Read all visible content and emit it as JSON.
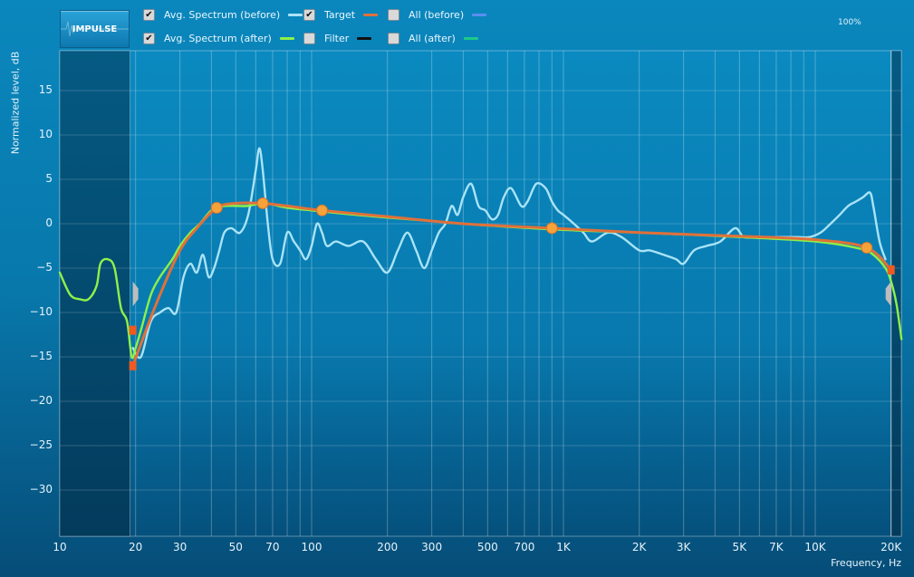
{
  "toolbar": {
    "impulse_label": "IMPULSE",
    "zoom_readout": "100%",
    "legend": [
      {
        "label": "Avg. Spectrum (before)",
        "checked": true,
        "color": "#a9e3f7"
      },
      {
        "label": "Avg. Spectrum (after)",
        "checked": true,
        "color": "#8ef04a"
      },
      {
        "label": "Target",
        "checked": true,
        "color": "#e0703a"
      },
      {
        "label": "Filter",
        "checked": false,
        "color": "#111111"
      },
      {
        "label": "All (before)",
        "checked": false,
        "color": "#5b8ef0"
      },
      {
        "label": "All (after)",
        "checked": false,
        "color": "#1ec98a"
      }
    ]
  },
  "chart_data": {
    "type": "line",
    "xscale": "log",
    "xlabel": "Frequency, Hz",
    "ylabel": "Normalized level, dB",
    "xlim": [
      10,
      22000
    ],
    "ylim": [
      -35,
      20
    ],
    "xticks": [
      10,
      20,
      30,
      50,
      70,
      100,
      200,
      300,
      500,
      700,
      1000,
      2000,
      3000,
      5000,
      7000,
      10000,
      20000
    ],
    "xtick_labels": [
      "10",
      "20",
      "30",
      "50",
      "70",
      "100",
      "200",
      "300",
      "500",
      "700",
      "1K",
      "2K",
      "3K",
      "5K",
      "7K",
      "10K",
      "20K"
    ],
    "yticks": [
      15,
      10,
      5,
      0,
      -5,
      -10,
      -15,
      -20,
      -25,
      -30
    ],
    "ytick_labels": [
      "15",
      "10",
      "5",
      "0",
      "−5",
      "−10",
      "−15",
      "−20",
      "−25",
      "−30"
    ],
    "grid": true,
    "excluded_ranges_hz": [
      [
        10,
        19
      ],
      [
        20000,
        22000
      ]
    ],
    "series": [
      {
        "name": "Avg. Spectrum (before)",
        "color": "#a9e3f7",
        "points": [
          [
            19.5,
            -14
          ],
          [
            21,
            -15
          ],
          [
            23,
            -11
          ],
          [
            25,
            -10
          ],
          [
            27,
            -9.5
          ],
          [
            29,
            -10
          ],
          [
            31,
            -6
          ],
          [
            33,
            -4.5
          ],
          [
            35,
            -5.5
          ],
          [
            37,
            -3.5
          ],
          [
            39,
            -6
          ],
          [
            41,
            -5
          ],
          [
            43,
            -3
          ],
          [
            45,
            -1
          ],
          [
            48,
            -0.5
          ],
          [
            52,
            -1
          ],
          [
            56,
            1
          ],
          [
            60,
            6
          ],
          [
            62,
            8.5
          ],
          [
            64,
            6
          ],
          [
            67,
            0
          ],
          [
            70,
            -4
          ],
          [
            75,
            -4.5
          ],
          [
            80,
            -1
          ],
          [
            85,
            -2
          ],
          [
            90,
            -3
          ],
          [
            95,
            -4
          ],
          [
            100,
            -2.5
          ],
          [
            105,
            0
          ],
          [
            110,
            -1
          ],
          [
            115,
            -2.5
          ],
          [
            125,
            -2
          ],
          [
            140,
            -2.5
          ],
          [
            160,
            -2
          ],
          [
            180,
            -4
          ],
          [
            200,
            -5.5
          ],
          [
            220,
            -3
          ],
          [
            240,
            -1
          ],
          [
            260,
            -3
          ],
          [
            280,
            -5
          ],
          [
            300,
            -3
          ],
          [
            320,
            -1
          ],
          [
            340,
            0
          ],
          [
            360,
            2
          ],
          [
            380,
            1
          ],
          [
            400,
            3
          ],
          [
            430,
            4.5
          ],
          [
            460,
            2
          ],
          [
            490,
            1.5
          ],
          [
            520,
            0.5
          ],
          [
            550,
            1
          ],
          [
            580,
            3
          ],
          [
            620,
            4
          ],
          [
            680,
            2
          ],
          [
            720,
            2.5
          ],
          [
            780,
            4.5
          ],
          [
            850,
            4
          ],
          [
            900,
            2.5
          ],
          [
            950,
            1.5
          ],
          [
            1000,
            1
          ],
          [
            1100,
            0
          ],
          [
            1200,
            -1
          ],
          [
            1300,
            -2
          ],
          [
            1500,
            -1
          ],
          [
            1700,
            -1.5
          ],
          [
            2000,
            -3
          ],
          [
            2200,
            -3
          ],
          [
            2500,
            -3.5
          ],
          [
            2800,
            -4
          ],
          [
            3000,
            -4.5
          ],
          [
            3300,
            -3
          ],
          [
            3700,
            -2.5
          ],
          [
            4200,
            -2
          ],
          [
            4800,
            -0.5
          ],
          [
            5200,
            -1.5
          ],
          [
            5800,
            -1.5
          ],
          [
            6500,
            -1.5
          ],
          [
            7500,
            -1.5
          ],
          [
            8500,
            -1.5
          ],
          [
            9500,
            -1.5
          ],
          [
            10500,
            -1
          ],
          [
            11500,
            0
          ],
          [
            12500,
            1
          ],
          [
            13500,
            2
          ],
          [
            14500,
            2.5
          ],
          [
            15500,
            3
          ],
          [
            16500,
            3.5
          ],
          [
            17000,
            2
          ],
          [
            18000,
            -2
          ],
          [
            19000,
            -4
          ]
        ]
      },
      {
        "name": "Avg. Spectrum (after)",
        "color": "#8ef04a",
        "points": [
          [
            10,
            -5.5
          ],
          [
            11,
            -8
          ],
          [
            12,
            -8.5
          ],
          [
            13,
            -8.5
          ],
          [
            14,
            -7
          ],
          [
            14.5,
            -4.5
          ],
          [
            15.5,
            -4
          ],
          [
            16.5,
            -5
          ],
          [
            17.5,
            -9.5
          ],
          [
            18.5,
            -11
          ],
          [
            19.3,
            -15
          ],
          [
            20,
            -14
          ],
          [
            21,
            -12
          ],
          [
            23,
            -8
          ],
          [
            25,
            -6
          ],
          [
            28,
            -4
          ],
          [
            30,
            -2.5
          ],
          [
            33,
            -1
          ],
          [
            36,
            0
          ],
          [
            40,
            1.5
          ],
          [
            45,
            2
          ],
          [
            55,
            2
          ],
          [
            65,
            2.3
          ],
          [
            80,
            1.8
          ],
          [
            100,
            1.5
          ],
          [
            150,
            1
          ],
          [
            200,
            0.7
          ],
          [
            300,
            0.3
          ],
          [
            500,
            -0.2
          ],
          [
            1000,
            -0.7
          ],
          [
            2000,
            -1
          ],
          [
            5000,
            -1.5
          ],
          [
            10000,
            -2
          ],
          [
            15000,
            -2.8
          ],
          [
            17000,
            -3.5
          ],
          [
            19000,
            -5
          ],
          [
            20000,
            -6.5
          ],
          [
            21000,
            -9
          ],
          [
            22000,
            -13
          ]
        ]
      },
      {
        "name": "Target",
        "color": "#e0703a",
        "points": [
          [
            19.5,
            -16
          ],
          [
            22,
            -12
          ],
          [
            25,
            -8
          ],
          [
            30,
            -3
          ],
          [
            35,
            -0.5
          ],
          [
            42,
            1.8
          ],
          [
            50,
            2.3
          ],
          [
            64,
            2.3
          ],
          [
            80,
            2
          ],
          [
            110,
            1.5
          ],
          [
            200,
            0.8
          ],
          [
            400,
            0
          ],
          [
            900,
            -0.5
          ],
          [
            2000,
            -1
          ],
          [
            5000,
            -1.4
          ],
          [
            10000,
            -1.8
          ],
          [
            16000,
            -2.7
          ],
          [
            20000,
            -5.2
          ]
        ]
      }
    ],
    "target_points": [
      [
        42,
        1.8
      ],
      [
        64,
        2.3
      ],
      [
        110,
        1.5
      ],
      [
        900,
        -0.5
      ],
      [
        16000,
        -2.7
      ]
    ],
    "range_markers": [
      [
        19.5,
        -12
      ],
      [
        19.5,
        -16
      ],
      [
        20000,
        -5.2
      ]
    ]
  }
}
